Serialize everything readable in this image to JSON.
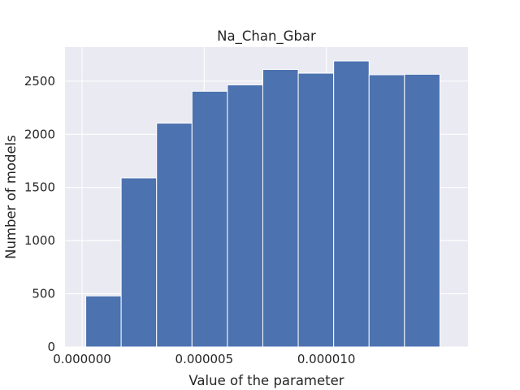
{
  "chart_data": {
    "type": "bar",
    "title": "Na_Chan_Gbar",
    "xlabel": "Value of the parameter",
    "ylabel": "Number of models",
    "bin_edges": [
      1.5e-07,
      1.6e-06,
      3.05e-06,
      4.5e-06,
      5.95e-06,
      7.4e-06,
      8.85e-06,
      1.03e-05,
      1.175e-05,
      1.32e-05,
      1.465e-05
    ],
    "values": [
      480,
      1590,
      2105,
      2405,
      2465,
      2610,
      2575,
      2690,
      2560,
      2565
    ],
    "xlim": [
      -7e-07,
      1.58e-05
    ],
    "ylim": [
      0,
      2820
    ],
    "xticks": [
      0.0,
      5e-06,
      1e-05
    ],
    "xtick_labels": [
      "0.000000",
      "0.000005",
      "0.000010"
    ],
    "yticks": [
      0,
      500,
      1000,
      1500,
      2000,
      2500
    ],
    "ytick_labels": [
      "0",
      "500",
      "1000",
      "1500",
      "2000",
      "2500"
    ],
    "grid": true,
    "colors": {
      "bar": "#4c72b0",
      "background": "#eaeaf2",
      "grid": "#ffffff"
    }
  }
}
